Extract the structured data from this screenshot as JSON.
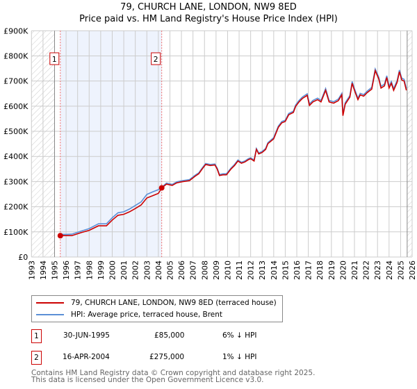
{
  "title": "79, CHURCH LANE, LONDON, NW9 8ED",
  "subtitle": "Price paid vs. HM Land Registry's House Price Index (HPI)",
  "colors": {
    "property": "#cc0000",
    "hpi": "#5b8fd6",
    "shade": "#eef3fd",
    "grid": "#cccccc"
  },
  "chart_data": {
    "type": "line",
    "title": "79, CHURCH LANE, LONDON, NW9 8ED",
    "subtitle": "Price paid vs. HM Land Registry's House Price Index (HPI)",
    "xlim": [
      1993,
      2026
    ],
    "ylim": [
      0,
      900000
    ],
    "grid": true,
    "x_ticks": [
      "1993",
      "1994",
      "1995",
      "1996",
      "1997",
      "1998",
      "1999",
      "2000",
      "2001",
      "2002",
      "2003",
      "2004",
      "2005",
      "2006",
      "2007",
      "2008",
      "2009",
      "2010",
      "2011",
      "2012",
      "2013",
      "2014",
      "2015",
      "2016",
      "2017",
      "2018",
      "2019",
      "2020",
      "2021",
      "2022",
      "2023",
      "2024",
      "2025",
      "2026"
    ],
    "y_ticks": [
      {
        "v": 0,
        "label": "£0"
      },
      {
        "v": 100000,
        "label": "£100K"
      },
      {
        "v": 200000,
        "label": "£200K"
      },
      {
        "v": 300000,
        "label": "£300K"
      },
      {
        "v": 400000,
        "label": "£400K"
      },
      {
        "v": 500000,
        "label": "£500K"
      },
      {
        "v": 600000,
        "label": "£600K"
      },
      {
        "v": 700000,
        "label": "£700K"
      },
      {
        "v": 800000,
        "label": "£800K"
      },
      {
        "v": 900000,
        "label": "£900K"
      }
    ],
    "hatch_before": 1995.0,
    "hatch_after": 2025.57,
    "x": [
      1995.5,
      1996.0,
      1996.5,
      1997.3,
      1998,
      1998.8,
      1999.5,
      2000,
      2000.5,
      2001,
      2001.5,
      2002,
      2002.5,
      2003,
      2003.5,
      2004,
      2004.3,
      2004.7,
      2005.2,
      2005.6,
      2006,
      2006.7,
      2007.2,
      2007.5,
      2007.8,
      2008.1,
      2008.5,
      2008.9,
      2009.1,
      2009.3,
      2009.6,
      2009.9,
      2010.3,
      2010.6,
      2010.9,
      2011.2,
      2011.5,
      2011.8,
      2012.0,
      2012.3,
      2012.5,
      2012.7,
      2013.0,
      2013.3,
      2013.5,
      2014.0,
      2014.4,
      2014.7,
      2015.0,
      2015.3,
      2015.7,
      2015.9,
      2016.2,
      2016.5,
      2016.9,
      2017.1,
      2017.4,
      2017.8,
      2018.1,
      2018.5,
      2018.8,
      2019.2,
      2019.6,
      2019.9,
      2020.0,
      2020.2,
      2020.6,
      2020.8,
      2021.0,
      2021.3,
      2021.5,
      2021.8,
      2022.1,
      2022.5,
      2022.8,
      2023.1,
      2023.3,
      2023.6,
      2023.8,
      2024.0,
      2024.2,
      2024.4,
      2024.7,
      2024.9,
      2025.1,
      2025.3,
      2025.5
    ],
    "series": [
      {
        "name": "79, CHURCH LANE, LONDON, NW9 8ED (terraced house)",
        "color": "#cc0000",
        "values": [
          85000,
          85000,
          85000,
          97000,
          106000,
          124000,
          124000,
          147000,
          166000,
          170000,
          180000,
          193000,
          207000,
          235000,
          244000,
          253000,
          275000,
          290000,
          285000,
          295000,
          299000,
          304000,
          322000,
          331000,
          350000,
          368000,
          364000,
          366000,
          350000,
          324000,
          327000,
          327000,
          350000,
          364000,
          382000,
          373000,
          378000,
          387000,
          391000,
          382000,
          428000,
          410000,
          416000,
          428000,
          451000,
          470000,
          516000,
          534000,
          539000,
          566000,
          575000,
          599000,
          617000,
          631000,
          643000,
          603000,
          617000,
          626000,
          617000,
          663000,
          617000,
          612000,
          622000,
          645000,
          562000,
          608000,
          636000,
          691000,
          663000,
          626000,
          645000,
          640000,
          654000,
          668000,
          741000,
          709000,
          672000,
          681000,
          714000,
          672000,
          691000,
          663000,
          695000,
          737000,
          704000,
          700000,
          663000
        ]
      },
      {
        "name": "HPI: Average price, terraced house, Brent",
        "color": "#5b8fd6",
        "values": [
          90000,
          90000,
          91000,
          103000,
          113000,
          132000,
          132000,
          156000,
          176000,
          180000,
          191000,
          205000,
          219000,
          249000,
          259000,
          268000,
          278000,
          294000,
          289000,
          299000,
          303000,
          308000,
          326000,
          335000,
          354000,
          372000,
          368000,
          370000,
          354000,
          328000,
          331000,
          331000,
          354000,
          368000,
          386000,
          377000,
          382000,
          391000,
          395000,
          386000,
          432000,
          414000,
          420000,
          432000,
          455000,
          475000,
          521000,
          539000,
          544000,
          571000,
          580000,
          605000,
          623000,
          637000,
          649000,
          609000,
          623000,
          632000,
          623000,
          670000,
          623000,
          618000,
          628000,
          651000,
          568000,
          614000,
          642000,
          698000,
          670000,
          632000,
          651000,
          646000,
          660000,
          675000,
          748000,
          716000,
          679000,
          688000,
          721000,
          679000,
          698000,
          670000,
          702000,
          744000,
          711000,
          707000,
          670000
        ]
      }
    ],
    "sales": [
      {
        "id": "1",
        "x": 1995.5,
        "value": 85000
      },
      {
        "id": "2",
        "x": 2004.29,
        "value": 275000
      }
    ]
  },
  "legend": [
    {
      "label": "79, CHURCH LANE, LONDON, NW9 8ED (terraced house)",
      "color": "#cc0000"
    },
    {
      "label": "HPI: Average price, terraced house, Brent",
      "color": "#5b8fd6"
    }
  ],
  "sales_table": [
    {
      "id": "1",
      "date": "30-JUN-1995",
      "price": "£85,000",
      "hpi": "6% ↓ HPI"
    },
    {
      "id": "2",
      "date": "16-APR-2004",
      "price": "£275,000",
      "hpi": "1% ↓ HPI"
    }
  ],
  "footer": {
    "line1": "Contains HM Land Registry data © Crown copyright and database right 2025.",
    "line2": "This data is licensed under the Open Government Licence v3.0."
  }
}
